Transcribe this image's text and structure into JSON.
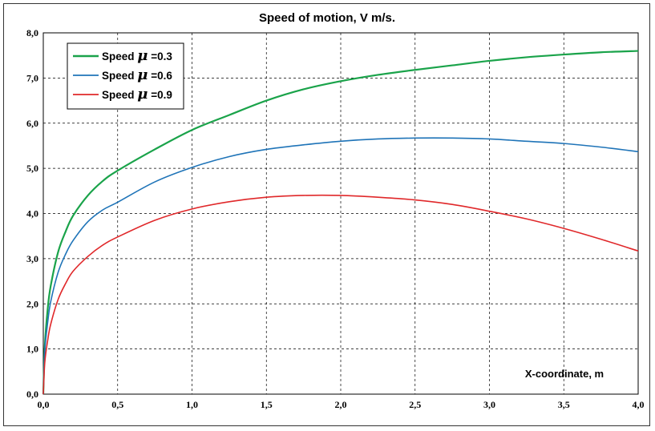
{
  "chart_data": {
    "type": "line",
    "title": "Speed of motion, V m/s.",
    "xlabel": "X-coordinate, m",
    "ylabel": "",
    "xlim": [
      0,
      4.0
    ],
    "ylim": [
      0,
      8.0
    ],
    "xticks": [
      0,
      0.5,
      1.0,
      1.5,
      2.0,
      2.5,
      3.0,
      3.5,
      4.0
    ],
    "yticks": [
      0,
      1.0,
      2.0,
      3.0,
      4.0,
      5.0,
      6.0,
      7.0,
      8.0
    ],
    "xtick_labels": [
      "0,0",
      "0,5",
      "1,0",
      "1,5",
      "2,0",
      "2,5",
      "3,0",
      "3,5",
      "4,0"
    ],
    "ytick_labels": [
      "0,0",
      "1,0",
      "2,0",
      "3,0",
      "4,0",
      "5,0",
      "6,0",
      "7,0",
      "8,0"
    ],
    "grid": true,
    "legend_position": "top-left",
    "series": [
      {
        "name": "Speed",
        "mu": "0.3",
        "color": "#1aa34a",
        "x": [
          0,
          0.01,
          0.03,
          0.05,
          0.1,
          0.15,
          0.2,
          0.3,
          0.4,
          0.5,
          0.75,
          1.0,
          1.25,
          1.5,
          1.75,
          2.0,
          2.25,
          2.5,
          2.75,
          3.0,
          3.25,
          3.5,
          3.75,
          4.0
        ],
        "y": [
          0,
          1.05,
          1.9,
          2.4,
          3.15,
          3.6,
          3.95,
          4.4,
          4.72,
          4.95,
          5.42,
          5.85,
          6.18,
          6.5,
          6.75,
          6.93,
          7.07,
          7.18,
          7.28,
          7.38,
          7.46,
          7.52,
          7.57,
          7.6
        ]
      },
      {
        "name": "Speed",
        "mu": "0.6",
        "color": "#1f74b8",
        "x": [
          0,
          0.01,
          0.03,
          0.05,
          0.1,
          0.15,
          0.2,
          0.3,
          0.4,
          0.5,
          0.75,
          1.0,
          1.25,
          1.5,
          1.75,
          2.0,
          2.25,
          2.5,
          2.75,
          3.0,
          3.25,
          3.5,
          3.75,
          4.0
        ],
        "y": [
          0,
          0.95,
          1.6,
          2.05,
          2.7,
          3.1,
          3.4,
          3.82,
          4.08,
          4.25,
          4.7,
          5.02,
          5.26,
          5.42,
          5.52,
          5.6,
          5.65,
          5.67,
          5.67,
          5.65,
          5.6,
          5.55,
          5.47,
          5.37
        ]
      },
      {
        "name": "Speed",
        "mu": "0.9",
        "color": "#e0282a",
        "x": [
          0,
          0.01,
          0.03,
          0.05,
          0.1,
          0.15,
          0.2,
          0.3,
          0.4,
          0.5,
          0.75,
          1.0,
          1.25,
          1.5,
          1.75,
          2.0,
          2.25,
          2.5,
          2.75,
          3.0,
          3.25,
          3.5,
          3.75,
          4.0
        ],
        "y": [
          0,
          0.7,
          1.2,
          1.55,
          2.1,
          2.45,
          2.72,
          3.05,
          3.3,
          3.48,
          3.85,
          4.1,
          4.26,
          4.36,
          4.4,
          4.4,
          4.36,
          4.3,
          4.2,
          4.05,
          3.88,
          3.67,
          3.43,
          3.17
        ]
      }
    ]
  }
}
